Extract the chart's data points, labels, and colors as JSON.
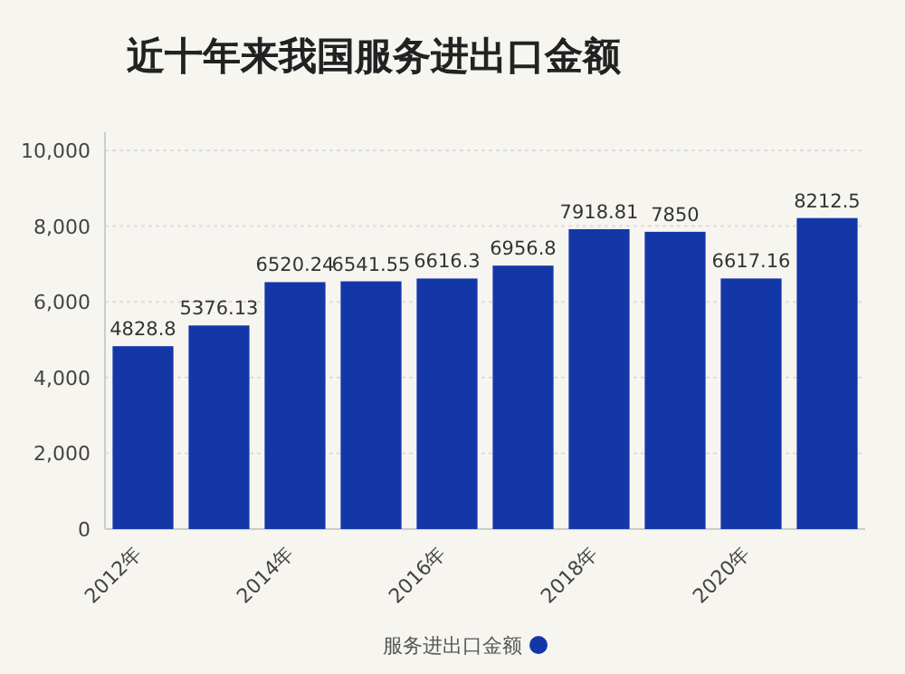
{
  "chart_data": {
    "type": "bar",
    "title": "近十年来我国服务进出口金额",
    "categories": [
      "2012年",
      null,
      "2014年",
      null,
      "2016年",
      null,
      "2018年",
      null,
      "2020年",
      null
    ],
    "series": [
      {
        "name": "服务进出口金额",
        "color": "#1437a8",
        "values": [
          4828.8,
          5376.13,
          6520.24,
          6541.55,
          6616.3,
          6956.8,
          7918.81,
          7850,
          6617.16,
          8212.5
        ]
      }
    ],
    "ylim": [
      0,
      10000
    ],
    "yticks": [
      {
        "value": 0,
        "label": "0"
      },
      {
        "value": 2000,
        "label": "2,000"
      },
      {
        "value": 4000,
        "label": "4,000"
      },
      {
        "value": 6000,
        "label": "6,000"
      },
      {
        "value": 8000,
        "label": "8,000"
      },
      {
        "value": 10000,
        "label": "10,000"
      }
    ],
    "grid": "y",
    "legend": "bottom",
    "data_labels": true
  }
}
